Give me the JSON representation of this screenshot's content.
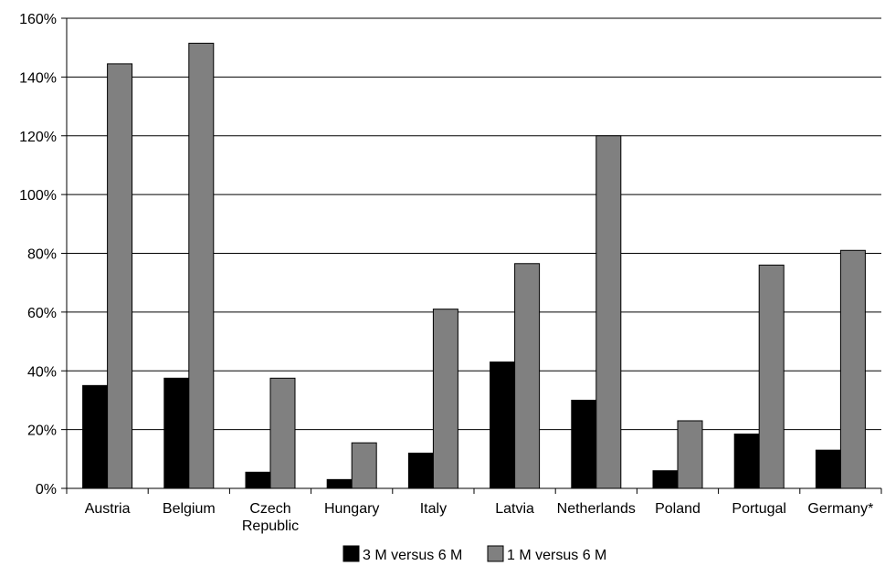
{
  "chart_data": {
    "type": "bar",
    "title": "",
    "xlabel": "",
    "ylabel": "",
    "categories": [
      [
        "Austria"
      ],
      [
        "Belgium"
      ],
      [
        "Czech",
        "Republic"
      ],
      [
        "Hungary"
      ],
      [
        "Italy"
      ],
      [
        "Latvia"
      ],
      [
        "Netherlands"
      ],
      [
        "Poland"
      ],
      [
        "Portugal"
      ],
      [
        "Germany*"
      ]
    ],
    "series": [
      {
        "name": "3 M versus 6 M",
        "color": "#000000",
        "values": [
          35,
          37.5,
          5.5,
          3,
          12,
          43,
          30,
          6,
          18.5,
          13
        ]
      },
      {
        "name": "1 M versus 6 M",
        "color": "#808080",
        "values": [
          144.5,
          151.5,
          37.5,
          15.5,
          61,
          76.5,
          120,
          23,
          76,
          81
        ]
      }
    ],
    "ylim": [
      0,
      160
    ],
    "yticks": [
      0,
      20,
      40,
      60,
      80,
      100,
      120,
      140,
      160
    ],
    "ytick_labels": [
      "0%",
      "20%",
      "40%",
      "60%",
      "80%",
      "100%",
      "120%",
      "140%",
      "160%"
    ],
    "grid": true,
    "legend_position": "bottom"
  }
}
